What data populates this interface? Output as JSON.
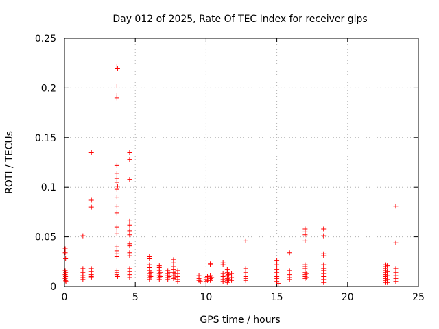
{
  "chart_data": {
    "type": "scatter",
    "title": "Day 012 of 2025, Rate Of TEC Index for receiver glps",
    "xlabel": "GPS time / hours",
    "ylabel": "ROTI / TECUs",
    "xlim": [
      0,
      25
    ],
    "ylim": [
      0,
      0.25
    ],
    "xticks": [
      0,
      5,
      10,
      15,
      20,
      25
    ],
    "xtick_labels": [
      "0",
      "5",
      "10",
      "15",
      "20",
      "25"
    ],
    "yticks": [
      0,
      0.05,
      0.1,
      0.15,
      0.2,
      0.25
    ],
    "ytick_labels": [
      "0",
      "0.05",
      "0.1",
      "0.15",
      "0.2",
      "0.25"
    ],
    "grid": true,
    "marker": "+",
    "marker_color": "#ff0000",
    "series": [
      {
        "name": "ROTI",
        "points": [
          [
            0.05,
            0.038
          ],
          [
            0.05,
            0.034
          ],
          [
            0.08,
            0.028
          ],
          [
            0.05,
            0.016
          ],
          [
            0.08,
            0.014
          ],
          [
            0.05,
            0.012
          ],
          [
            0.08,
            0.01
          ],
          [
            0.05,
            0.008
          ],
          [
            0.08,
            0.006
          ],
          [
            0.1,
            0.005
          ],
          [
            1.3,
            0.051
          ],
          [
            1.3,
            0.018
          ],
          [
            1.3,
            0.014
          ],
          [
            1.3,
            0.011
          ],
          [
            1.3,
            0.009
          ],
          [
            1.3,
            0.007
          ],
          [
            1.9,
            0.135
          ],
          [
            1.9,
            0.087
          ],
          [
            1.9,
            0.08
          ],
          [
            1.9,
            0.018
          ],
          [
            1.9,
            0.015
          ],
          [
            1.9,
            0.012
          ],
          [
            1.9,
            0.01
          ],
          [
            1.9,
            0.009
          ],
          [
            3.7,
            0.222
          ],
          [
            3.75,
            0.22
          ],
          [
            3.7,
            0.202
          ],
          [
            3.7,
            0.193
          ],
          [
            3.7,
            0.19
          ],
          [
            3.7,
            0.122
          ],
          [
            3.7,
            0.114
          ],
          [
            3.7,
            0.109
          ],
          [
            3.7,
            0.105
          ],
          [
            3.75,
            0.101
          ],
          [
            3.7,
            0.098
          ],
          [
            3.7,
            0.09
          ],
          [
            3.7,
            0.081
          ],
          [
            3.7,
            0.074
          ],
          [
            3.7,
            0.06
          ],
          [
            3.7,
            0.057
          ],
          [
            3.7,
            0.053
          ],
          [
            3.7,
            0.04
          ],
          [
            3.7,
            0.036
          ],
          [
            3.7,
            0.033
          ],
          [
            3.7,
            0.03
          ],
          [
            3.7,
            0.016
          ],
          [
            3.7,
            0.014
          ],
          [
            3.7,
            0.012
          ],
          [
            3.75,
            0.01
          ],
          [
            4.6,
            0.135
          ],
          [
            4.6,
            0.128
          ],
          [
            4.6,
            0.108
          ],
          [
            4.6,
            0.066
          ],
          [
            4.6,
            0.062
          ],
          [
            4.6,
            0.056
          ],
          [
            4.6,
            0.052
          ],
          [
            4.6,
            0.043
          ],
          [
            4.6,
            0.041
          ],
          [
            4.6,
            0.034
          ],
          [
            4.6,
            0.031
          ],
          [
            4.6,
            0.018
          ],
          [
            4.6,
            0.015
          ],
          [
            4.6,
            0.012
          ],
          [
            4.6,
            0.009
          ],
          [
            6.0,
            0.03
          ],
          [
            6.0,
            0.028
          ],
          [
            6.0,
            0.022
          ],
          [
            6.0,
            0.019
          ],
          [
            6.0,
            0.016
          ],
          [
            6.0,
            0.013
          ],
          [
            6.0,
            0.011
          ],
          [
            6.0,
            0.009
          ],
          [
            6.0,
            0.007
          ],
          [
            6.1,
            0.014
          ],
          [
            6.1,
            0.01
          ],
          [
            6.7,
            0.021
          ],
          [
            6.7,
            0.019
          ],
          [
            6.7,
            0.016
          ],
          [
            6.7,
            0.013
          ],
          [
            6.7,
            0.011
          ],
          [
            6.7,
            0.009
          ],
          [
            6.7,
            0.007
          ],
          [
            6.8,
            0.014
          ],
          [
            6.8,
            0.01
          ],
          [
            7.3,
            0.016
          ],
          [
            7.3,
            0.013
          ],
          [
            7.3,
            0.011
          ],
          [
            7.3,
            0.009
          ],
          [
            7.3,
            0.007
          ],
          [
            7.4,
            0.014
          ],
          [
            7.4,
            0.01
          ],
          [
            7.7,
            0.027
          ],
          [
            7.7,
            0.024
          ],
          [
            7.7,
            0.02
          ],
          [
            7.7,
            0.017
          ],
          [
            7.7,
            0.014
          ],
          [
            7.7,
            0.011
          ],
          [
            7.7,
            0.008
          ],
          [
            7.8,
            0.013
          ],
          [
            7.8,
            0.009
          ],
          [
            8.0,
            0.016
          ],
          [
            8.0,
            0.013
          ],
          [
            8.0,
            0.01
          ],
          [
            8.0,
            0.007
          ],
          [
            8.0,
            0.005
          ],
          [
            9.5,
            0.011
          ],
          [
            9.5,
            0.008
          ],
          [
            9.5,
            0.006
          ],
          [
            9.6,
            0.005
          ],
          [
            10.0,
            0.009
          ],
          [
            10.0,
            0.007
          ],
          [
            10.0,
            0.005
          ],
          [
            10.1,
            0.01
          ],
          [
            10.1,
            0.006
          ],
          [
            10.3,
            0.023
          ],
          [
            10.3,
            0.022
          ],
          [
            10.3,
            0.011
          ],
          [
            10.3,
            0.008
          ],
          [
            10.3,
            0.006
          ],
          [
            10.4,
            0.009
          ],
          [
            11.2,
            0.024
          ],
          [
            11.2,
            0.022
          ],
          [
            11.2,
            0.013
          ],
          [
            11.2,
            0.01
          ],
          [
            11.2,
            0.007
          ],
          [
            11.2,
            0.005
          ],
          [
            11.5,
            0.017
          ],
          [
            11.5,
            0.014
          ],
          [
            11.5,
            0.011
          ],
          [
            11.5,
            0.008
          ],
          [
            11.5,
            0.006
          ],
          [
            11.5,
            0.004
          ],
          [
            11.6,
            0.012
          ],
          [
            11.6,
            0.007
          ],
          [
            11.8,
            0.013
          ],
          [
            11.8,
            0.009
          ],
          [
            11.8,
            0.006
          ],
          [
            12.8,
            0.046
          ],
          [
            12.8,
            0.018
          ],
          [
            12.8,
            0.014
          ],
          [
            12.8,
            0.01
          ],
          [
            12.8,
            0.008
          ],
          [
            12.8,
            0.006
          ],
          [
            15.0,
            0.026
          ],
          [
            15.0,
            0.022
          ],
          [
            15.0,
            0.017
          ],
          [
            15.0,
            0.014
          ],
          [
            15.0,
            0.01
          ],
          [
            15.0,
            0.008
          ],
          [
            15.0,
            0.005
          ],
          [
            15.1,
            0.003
          ],
          [
            15.9,
            0.034
          ],
          [
            15.9,
            0.016
          ],
          [
            15.9,
            0.012
          ],
          [
            15.9,
            0.009
          ],
          [
            15.9,
            0.007
          ],
          [
            17.0,
            0.058
          ],
          [
            17.0,
            0.055
          ],
          [
            17.0,
            0.052
          ],
          [
            17.0,
            0.046
          ],
          [
            17.0,
            0.022
          ],
          [
            17.0,
            0.02
          ],
          [
            17.0,
            0.018
          ],
          [
            17.0,
            0.014
          ],
          [
            17.0,
            0.012
          ],
          [
            17.0,
            0.01
          ],
          [
            17.0,
            0.008
          ],
          [
            17.1,
            0.013
          ],
          [
            17.1,
            0.009
          ],
          [
            18.3,
            0.058
          ],
          [
            18.3,
            0.051
          ],
          [
            18.3,
            0.033
          ],
          [
            18.3,
            0.031
          ],
          [
            18.3,
            0.022
          ],
          [
            18.3,
            0.018
          ],
          [
            18.3,
            0.016
          ],
          [
            18.3,
            0.013
          ],
          [
            18.3,
            0.01
          ],
          [
            18.3,
            0.007
          ],
          [
            18.3,
            0.004
          ],
          [
            22.7,
            0.022
          ],
          [
            22.7,
            0.02
          ],
          [
            22.7,
            0.018
          ],
          [
            22.7,
            0.016
          ],
          [
            22.7,
            0.014
          ],
          [
            22.7,
            0.012
          ],
          [
            22.7,
            0.01
          ],
          [
            22.7,
            0.008
          ],
          [
            22.7,
            0.006
          ],
          [
            22.7,
            0.004
          ],
          [
            22.8,
            0.021
          ],
          [
            22.8,
            0.015
          ],
          [
            22.8,
            0.011
          ],
          [
            22.8,
            0.007
          ],
          [
            22.8,
            0.004
          ],
          [
            23.4,
            0.081
          ],
          [
            23.4,
            0.044
          ],
          [
            23.4,
            0.018
          ],
          [
            23.4,
            0.014
          ],
          [
            23.4,
            0.011
          ],
          [
            23.4,
            0.008
          ],
          [
            23.4,
            0.005
          ]
        ]
      }
    ]
  }
}
